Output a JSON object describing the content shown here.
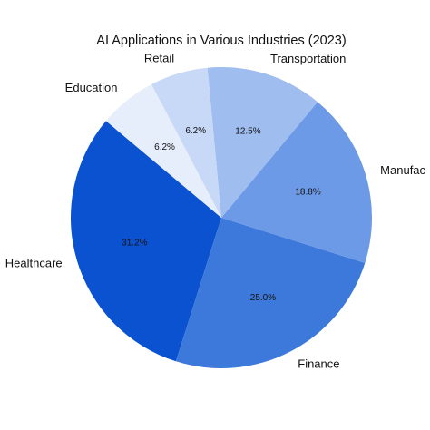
{
  "chart_data": {
    "type": "pie",
    "title": "AI Applications in Various Industries (2023)",
    "categories": [
      "Healthcare",
      "Finance",
      "Manufac",
      "Transportation",
      "Retail",
      "Education"
    ],
    "values": [
      31.2,
      25.0,
      18.8,
      12.5,
      6.2,
      6.2
    ],
    "value_labels": [
      "31.2%",
      "25.0%",
      "18.8%",
      "12.5%",
      "6.2%",
      "6.2%"
    ],
    "colors": [
      "#0b52d0",
      "#3d79db",
      "#6c9ae6",
      "#9fbdef",
      "#c8d9f7",
      "#e7eefb"
    ]
  }
}
